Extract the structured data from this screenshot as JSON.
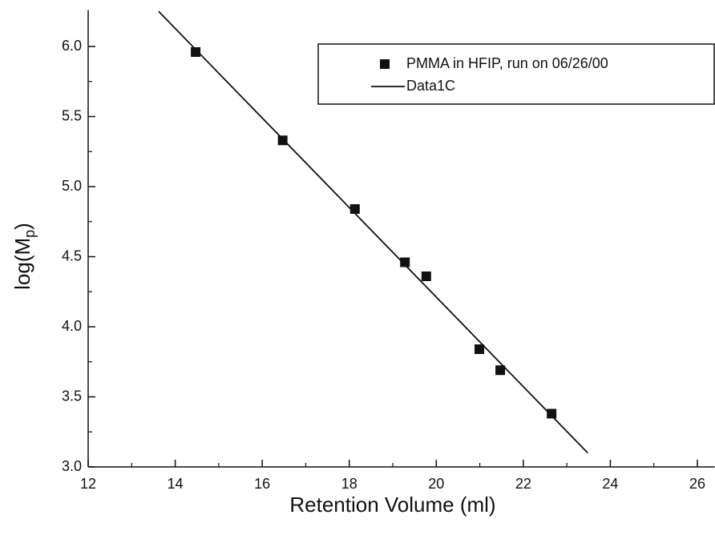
{
  "chart_data": {
    "type": "scatter",
    "xlabel": "Retention Volume (ml)",
    "ylabel": [
      "log(M",
      "p",
      ")"
    ],
    "xlim": [
      12,
      26.4
    ],
    "ylim": [
      3.0,
      6.26
    ],
    "xticks": [
      12,
      14,
      16,
      18,
      20,
      22,
      24,
      26
    ],
    "yticks": [
      {
        "value": 3,
        "label": "3.0"
      },
      3.5,
      {
        "value": 4,
        "label": "4.0"
      },
      4.5,
      {
        "value": 5,
        "label": "5.0"
      },
      5.5,
      {
        "value": 6,
        "label": "6.0"
      }
    ],
    "legend": "upper right",
    "series": [
      {
        "name": "PMMA in HFIP, run on 06/26/00",
        "type": "scatter",
        "color": "#111111",
        "x": [
          14.47,
          16.47,
          18.13,
          19.28,
          19.77,
          20.99,
          21.47,
          22.65
        ],
        "values": [
          5.96,
          5.33,
          4.84,
          4.46,
          4.36,
          3.84,
          3.69,
          3.38
        ]
      },
      {
        "name": "Data1C",
        "type": "line",
        "color": "#111111",
        "x": [
          13.62,
          23.48
        ],
        "values": [
          6.25,
          3.1
        ]
      }
    ]
  }
}
